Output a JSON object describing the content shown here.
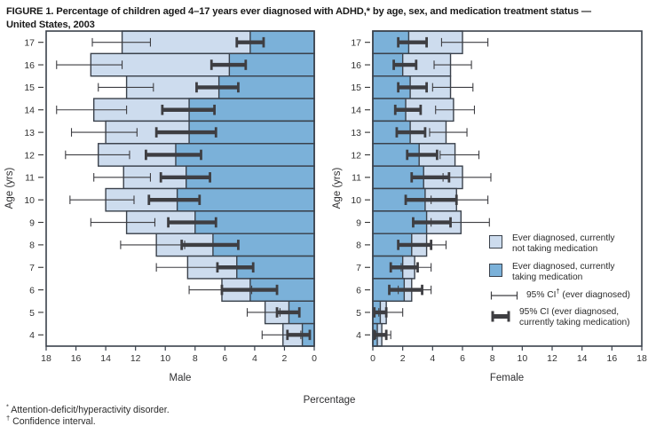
{
  "title": {
    "lines": [
      "FIGURE 1. Percentage of children aged 4–17 years ever diagnosed with ADHD,* by age, sex, and medication treatment status —",
      "United States, 2003"
    ]
  },
  "chart_data": {
    "type": "bar",
    "orientation": "horizontal",
    "paired_panels": true,
    "categories_axis_label": "Age (yrs)",
    "value_axis_label": "Percentage",
    "categories": [
      "17",
      "16",
      "15",
      "14",
      "13",
      "12",
      "11",
      "10",
      "9",
      "8",
      "7",
      "6",
      "5",
      "4"
    ],
    "xlim": [
      0,
      18
    ],
    "xticks": [
      0,
      2,
      4,
      6,
      8,
      10,
      12,
      14,
      16,
      18
    ],
    "grid": false,
    "colors": {
      "light_blue": "#cddcee",
      "medium_blue": "#7bb1d9",
      "bar_outline": "#3a414b",
      "error_bar": "#3e3e42",
      "axis_text": "#333333"
    },
    "panels": [
      {
        "label": "Male",
        "axis_direction": "right-to-left",
        "rows": [
          {
            "age": "17",
            "ever_diagnosed": 12.9,
            "taking_medication": 4.3,
            "ci_ever": [
              11.0,
              14.9
            ],
            "ci_medication": [
              3.4,
              5.2
            ]
          },
          {
            "age": "16",
            "ever_diagnosed": 15.0,
            "taking_medication": 5.7,
            "ci_ever": [
              12.9,
              17.3
            ],
            "ci_medication": [
              4.6,
              6.9
            ]
          },
          {
            "age": "15",
            "ever_diagnosed": 12.6,
            "taking_medication": 6.4,
            "ci_ever": [
              10.8,
              14.5
            ],
            "ci_medication": [
              5.1,
              7.9
            ]
          },
          {
            "age": "14",
            "ever_diagnosed": 14.8,
            "taking_medication": 8.4,
            "ci_ever": [
              12.6,
              17.3
            ],
            "ci_medication": [
              6.7,
              10.2
            ]
          },
          {
            "age": "13",
            "ever_diagnosed": 14.0,
            "taking_medication": 8.4,
            "ci_ever": [
              11.9,
              16.3
            ],
            "ci_medication": [
              6.6,
              10.6
            ]
          },
          {
            "age": "12",
            "ever_diagnosed": 14.5,
            "taking_medication": 9.3,
            "ci_ever": [
              12.4,
              16.7
            ],
            "ci_medication": [
              7.6,
              11.3
            ]
          },
          {
            "age": "11",
            "ever_diagnosed": 12.8,
            "taking_medication": 8.6,
            "ci_ever": [
              11.0,
              14.8
            ],
            "ci_medication": [
              7.0,
              10.3
            ]
          },
          {
            "age": "10",
            "ever_diagnosed": 14.0,
            "taking_medication": 9.2,
            "ci_ever": [
              12.1,
              16.4
            ],
            "ci_medication": [
              7.7,
              11.1
            ]
          },
          {
            "age": "9",
            "ever_diagnosed": 12.6,
            "taking_medication": 8.0,
            "ci_ever": [
              10.7,
              15.0
            ],
            "ci_medication": [
              6.6,
              9.8
            ]
          },
          {
            "age": "8",
            "ever_diagnosed": 10.6,
            "taking_medication": 6.8,
            "ci_ever": [
              8.7,
              13.0
            ],
            "ci_medication": [
              5.1,
              8.9
            ]
          },
          {
            "age": "7",
            "ever_diagnosed": 8.5,
            "taking_medication": 5.2,
            "ci_ever": [
              6.5,
              10.6
            ],
            "ci_medication": [
              4.1,
              6.5
            ]
          },
          {
            "age": "6",
            "ever_diagnosed": 6.2,
            "taking_medication": 4.3,
            "ci_ever": [
              4.2,
              8.4
            ],
            "ci_medication": [
              2.5,
              6.2
            ]
          },
          {
            "age": "5",
            "ever_diagnosed": 3.3,
            "taking_medication": 1.7,
            "ci_ever": [
              2.3,
              4.5
            ],
            "ci_medication": [
              1.0,
              2.5
            ]
          },
          {
            "age": "4",
            "ever_diagnosed": 2.1,
            "taking_medication": 0.8,
            "ci_ever": [
              0.9,
              3.5
            ],
            "ci_medication": [
              0.3,
              1.8
            ]
          }
        ]
      },
      {
        "label": "Female",
        "axis_direction": "left-to-right",
        "rows": [
          {
            "age": "17",
            "ever_diagnosed": 6.0,
            "taking_medication": 2.4,
            "ci_ever": [
              4.6,
              7.7
            ],
            "ci_medication": [
              1.7,
              3.6
            ]
          },
          {
            "age": "16",
            "ever_diagnosed": 5.2,
            "taking_medication": 2.0,
            "ci_ever": [
              4.1,
              6.6
            ],
            "ci_medication": [
              1.4,
              2.9
            ]
          },
          {
            "age": "15",
            "ever_diagnosed": 5.2,
            "taking_medication": 2.5,
            "ci_ever": [
              4.0,
              6.7
            ],
            "ci_medication": [
              1.7,
              3.6
            ]
          },
          {
            "age": "14",
            "ever_diagnosed": 5.4,
            "taking_medication": 2.2,
            "ci_ever": [
              4.2,
              6.8
            ],
            "ci_medication": [
              1.5,
              3.2
            ]
          },
          {
            "age": "13",
            "ever_diagnosed": 4.9,
            "taking_medication": 2.5,
            "ci_ever": [
              3.8,
              6.3
            ],
            "ci_medication": [
              1.6,
              3.5
            ]
          },
          {
            "age": "12",
            "ever_diagnosed": 5.5,
            "taking_medication": 3.1,
            "ci_ever": [
              4.5,
              7.1
            ],
            "ci_medication": [
              2.3,
              4.3
            ]
          },
          {
            "age": "11",
            "ever_diagnosed": 6.0,
            "taking_medication": 3.4,
            "ci_ever": [
              4.7,
              7.9
            ],
            "ci_medication": [
              2.6,
              5.1
            ]
          },
          {
            "age": "10",
            "ever_diagnosed": 5.6,
            "taking_medication": 3.5,
            "ci_ever": [
              3.9,
              7.7
            ],
            "ci_medication": [
              2.2,
              5.6
            ]
          },
          {
            "age": "9",
            "ever_diagnosed": 5.9,
            "taking_medication": 3.6,
            "ci_ever": [
              3.9,
              7.8
            ],
            "ci_medication": [
              2.7,
              5.2
            ]
          },
          {
            "age": "8",
            "ever_diagnosed": 3.6,
            "taking_medication": 2.6,
            "ci_ever": [
              2.6,
              4.9
            ],
            "ci_medication": [
              1.7,
              3.9
            ]
          },
          {
            "age": "7",
            "ever_diagnosed": 2.8,
            "taking_medication": 2.0,
            "ci_ever": [
              1.9,
              3.9
            ],
            "ci_medication": [
              1.2,
              3.0
            ]
          },
          {
            "age": "6",
            "ever_diagnosed": 2.6,
            "taking_medication": 2.1,
            "ci_ever": [
              1.7,
              3.9
            ],
            "ci_medication": [
              1.1,
              3.3
            ]
          },
          {
            "age": "5",
            "ever_diagnosed": 0.9,
            "taking_medication": 0.5,
            "ci_ever": [
              0.4,
              2.0
            ],
            "ci_medication": [
              0.1,
              0.9
            ]
          },
          {
            "age": "4",
            "ever_diagnosed": 0.6,
            "taking_medication": 0.3,
            "ci_ever": [
              0.2,
              1.2
            ],
            "ci_medication": [
              0.1,
              0.9
            ]
          }
        ]
      }
    ]
  },
  "legend": {
    "items": [
      {
        "lines": [
          "Ever diagnosed, currently",
          "not taking medication"
        ]
      },
      {
        "lines": [
          "Ever diagnosed, currently",
          "taking medication"
        ]
      },
      {
        "pre": "95% CI",
        "sup": "†",
        "post": " (ever diagnosed)"
      },
      {
        "lines": [
          "95% CI (ever diagnosed,",
          "currently taking medication)"
        ]
      }
    ]
  },
  "footnotes": [
    {
      "sup": "*",
      "text": " Attention-deficit/hyperactivity disorder."
    },
    {
      "sup": "†",
      "text": " Confidence interval."
    }
  ]
}
